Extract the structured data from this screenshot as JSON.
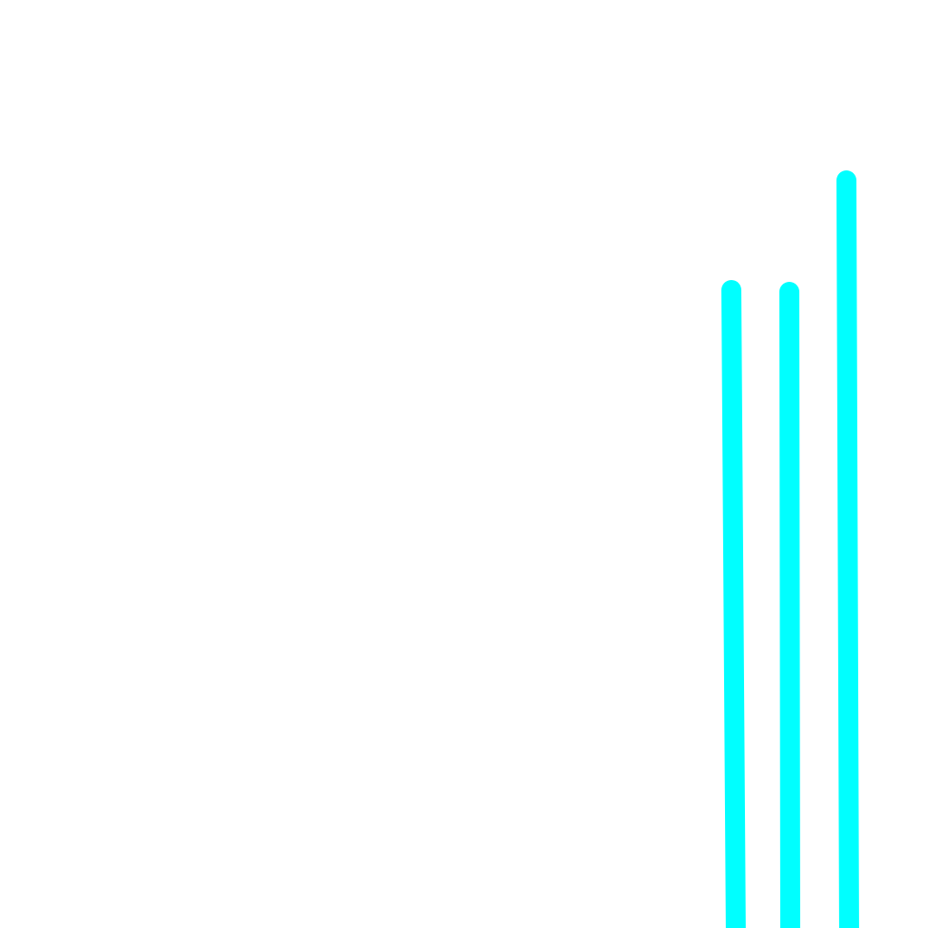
{
  "canvas": {
    "background_color": "#ffffff",
    "stroke_color": "#00ffff",
    "line_count": 3
  }
}
